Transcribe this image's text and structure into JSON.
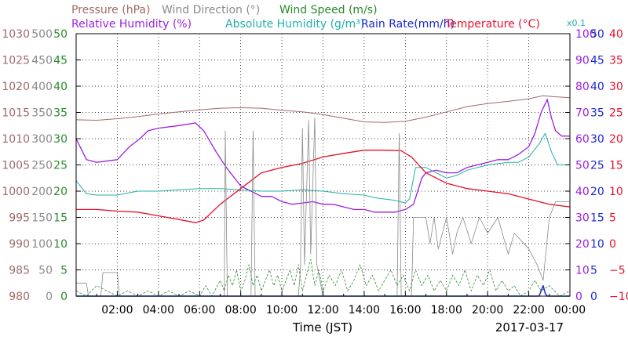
{
  "chart_data": {
    "type": "line",
    "legend_row1": [
      {
        "text": "Pressure (hPa)",
        "color": "#a06a6a"
      },
      {
        "text": "Wind Direction (°)",
        "color": "#8a8a8a"
      },
      {
        "text": "Wind Speed (m/s)",
        "color": "#2a8a2a"
      }
    ],
    "legend_row2": [
      {
        "text": "Relative Humidity (%)",
        "color": "#9b1fe0"
      },
      {
        "text": "Absolute Humidity (g/m³)",
        "color": "#22b0a8"
      },
      {
        "text": "Rain Rate(mm/h)",
        "color": "#1a2ad0"
      },
      {
        "text": "Temperature (°C)",
        "color": "#e8102a"
      }
    ],
    "abs_humidity_scale_note": "x0.1",
    "xlabel": "Time (JST)",
    "date": "2017-03-17",
    "x_ticks": [
      "02:00",
      "04:00",
      "06:00",
      "08:00",
      "10:00",
      "12:00",
      "14:00",
      "16:00",
      "18:00",
      "20:00",
      "22:00",
      "00:00"
    ],
    "xlim_hours": [
      0,
      24
    ],
    "axes": {
      "pressure": {
        "color": "#a06a6a",
        "ylim": [
          980,
          1030
        ],
        "ticks": [
          "980",
          "985",
          "990",
          "995",
          "1000",
          "1005",
          "1010",
          "1015",
          "1020",
          "1025",
          "1030"
        ]
      },
      "wind_direction": {
        "color": "#8a8a8a",
        "ylim": [
          0,
          500
        ],
        "ticks": [
          "0",
          "50",
          "100",
          "150",
          "200",
          "250",
          "300",
          "350",
          "400",
          "450",
          "500"
        ]
      },
      "wind_speed": {
        "color": "#2a8a2a",
        "ylim": [
          0,
          50
        ],
        "ticks": [
          "0",
          "5",
          "10",
          "15",
          "20",
          "25",
          "30",
          "35",
          "40",
          "45",
          "50"
        ]
      },
      "humidity": {
        "color": "#9b1fe0",
        "ylim": [
          0,
          100
        ],
        "ticks": [
          "0",
          "10",
          "20",
          "30",
          "40",
          "50",
          "60",
          "70",
          "80",
          "90",
          "100"
        ]
      },
      "rain_rate": {
        "color": "#1a2ad0",
        "ylim": [
          0,
          50
        ],
        "ticks": [
          "0",
          "5",
          "10",
          "15",
          "20",
          "25",
          "30",
          "35",
          "40",
          "45",
          "50"
        ]
      },
      "temperature": {
        "color": "#e8102a",
        "ylim": [
          -10,
          40
        ],
        "ticks": [
          "−10",
          "−5",
          "0",
          "5",
          "10",
          "15",
          "20",
          "25",
          "30",
          "35",
          "40"
        ]
      }
    },
    "grid": true,
    "series": [
      {
        "name": "Pressure (hPa)",
        "axis": "pressure",
        "color": "#a06a6a",
        "width": 1,
        "points": [
          [
            0,
            1013.6
          ],
          [
            1,
            1013.5
          ],
          [
            2,
            1013.8
          ],
          [
            3,
            1014.2
          ],
          [
            4,
            1014.7
          ],
          [
            5,
            1015.1
          ],
          [
            6,
            1015.5
          ],
          [
            7,
            1015.8
          ],
          [
            8,
            1015.9
          ],
          [
            9,
            1015.8
          ],
          [
            10,
            1015.4
          ],
          [
            11,
            1015.1
          ],
          [
            12,
            1014.6
          ],
          [
            13,
            1013.9
          ],
          [
            14,
            1013.2
          ],
          [
            15,
            1013.1
          ],
          [
            16,
            1013.3
          ],
          [
            17,
            1014.1
          ],
          [
            18,
            1015.1
          ],
          [
            19,
            1016.1
          ],
          [
            20,
            1016.7
          ],
          [
            21,
            1017.1
          ],
          [
            22,
            1017.6
          ],
          [
            22.7,
            1018.2
          ],
          [
            23.2,
            1018.0
          ],
          [
            24,
            1017.8
          ]
        ]
      },
      {
        "name": "Relative Humidity (%)",
        "axis": "humidity",
        "color": "#9b1fe0",
        "width": 1.3,
        "points": [
          [
            0,
            60
          ],
          [
            0.5,
            52
          ],
          [
            1,
            51
          ],
          [
            2,
            52
          ],
          [
            2.6,
            57
          ],
          [
            3.1,
            60
          ],
          [
            3.5,
            63
          ],
          [
            4,
            64
          ],
          [
            5,
            65
          ],
          [
            5.8,
            66
          ],
          [
            6.2,
            63
          ],
          [
            6.8,
            55
          ],
          [
            7.3,
            49
          ],
          [
            7.8,
            44
          ],
          [
            8,
            42
          ],
          [
            8.5,
            40
          ],
          [
            9,
            38
          ],
          [
            9.5,
            38
          ],
          [
            10,
            36
          ],
          [
            10.5,
            35
          ],
          [
            11,
            35.5
          ],
          [
            11.5,
            36
          ],
          [
            12,
            35
          ],
          [
            12.5,
            35
          ],
          [
            13,
            34
          ],
          [
            13.5,
            33
          ],
          [
            14,
            33
          ],
          [
            14.5,
            32
          ],
          [
            15,
            32
          ],
          [
            15.5,
            32
          ],
          [
            16,
            33
          ],
          [
            16.4,
            35
          ],
          [
            16.6,
            40
          ],
          [
            16.8,
            45
          ],
          [
            17,
            47
          ],
          [
            17.5,
            48
          ],
          [
            18,
            47
          ],
          [
            18.5,
            47
          ],
          [
            19,
            49
          ],
          [
            19.5,
            50
          ],
          [
            20,
            51
          ],
          [
            20.5,
            52
          ],
          [
            21,
            52
          ],
          [
            21.5,
            54
          ],
          [
            22,
            57
          ],
          [
            22.3,
            62
          ],
          [
            22.6,
            70
          ],
          [
            22.9,
            75
          ],
          [
            23.1,
            68
          ],
          [
            23.3,
            63
          ],
          [
            23.6,
            61
          ],
          [
            24,
            61
          ]
        ]
      },
      {
        "name": "Absolute Humidity (g/m³)",
        "axis": "humidity",
        "color": "#22b0a8",
        "width": 1,
        "points": [
          [
            0,
            44
          ],
          [
            0.5,
            39
          ],
          [
            1,
            38.5
          ],
          [
            2,
            38.5
          ],
          [
            3,
            40
          ],
          [
            4,
            40
          ],
          [
            5,
            40.5
          ],
          [
            6,
            41
          ],
          [
            7,
            41
          ],
          [
            8,
            40.5
          ],
          [
            9,
            40
          ],
          [
            10,
            40
          ],
          [
            11,
            40.5
          ],
          [
            12,
            40
          ],
          [
            13,
            39
          ],
          [
            14,
            38.5
          ],
          [
            14.5,
            37.5
          ],
          [
            15,
            37
          ],
          [
            15.5,
            36.5
          ],
          [
            16,
            35.5
          ],
          [
            16.2,
            37
          ],
          [
            16.5,
            49
          ],
          [
            17,
            49
          ],
          [
            17.5,
            47
          ],
          [
            18,
            45
          ],
          [
            18.5,
            46
          ],
          [
            19,
            48
          ],
          [
            20,
            50
          ],
          [
            21,
            51
          ],
          [
            21.5,
            51
          ],
          [
            22,
            53
          ],
          [
            22.5,
            58
          ],
          [
            22.8,
            62
          ],
          [
            23.1,
            55
          ],
          [
            23.4,
            50
          ],
          [
            24,
            50
          ]
        ]
      },
      {
        "name": "Temperature (°C)",
        "axis": "temperature",
        "color": "#e8102a",
        "width": 1.3,
        "points": [
          [
            0,
            6.5
          ],
          [
            1,
            6.5
          ],
          [
            2,
            6.2
          ],
          [
            3,
            6.0
          ],
          [
            4,
            5.3
          ],
          [
            5,
            4.6
          ],
          [
            5.8,
            4.0
          ],
          [
            6.2,
            4.5
          ],
          [
            7,
            7.5
          ],
          [
            8,
            10.5
          ],
          [
            9,
            13.5
          ],
          [
            10,
            14.5
          ],
          [
            11,
            15.3
          ],
          [
            12,
            16.5
          ],
          [
            13,
            17.2
          ],
          [
            14,
            17.8
          ],
          [
            15,
            17.8
          ],
          [
            15.8,
            17.7
          ],
          [
            16.3,
            16.5
          ],
          [
            17,
            13.5
          ],
          [
            18,
            11.5
          ],
          [
            19,
            10.5
          ],
          [
            20,
            10
          ],
          [
            21,
            9.5
          ],
          [
            22,
            8.5
          ],
          [
            23,
            7.5
          ],
          [
            24,
            7.0
          ]
        ]
      },
      {
        "name": "Wind Direction (°)",
        "axis": "wind_direction",
        "color": "#8a8a8a",
        "width": 0.8,
        "points": [
          [
            0,
            25
          ],
          [
            0.5,
            25
          ],
          [
            0.6,
            0
          ],
          [
            1.2,
            0
          ],
          [
            1.3,
            45
          ],
          [
            2,
            45
          ],
          [
            2.1,
            0
          ],
          [
            7,
            0
          ],
          [
            7.2,
            0
          ],
          [
            7.25,
            315
          ],
          [
            7.35,
            0
          ],
          [
            8.5,
            0
          ],
          [
            8.6,
            315
          ],
          [
            8.7,
            0
          ],
          [
            10.8,
            0
          ],
          [
            10.9,
            50
          ],
          [
            11,
            320
          ],
          [
            11.1,
            60
          ],
          [
            11.3,
            335
          ],
          [
            11.4,
            80
          ],
          [
            11.6,
            340
          ],
          [
            11.7,
            60
          ],
          [
            12,
            0
          ],
          [
            15.6,
            0
          ],
          [
            15.7,
            310
          ],
          [
            15.8,
            0
          ],
          [
            16.3,
            0
          ],
          [
            16.4,
            150
          ],
          [
            17,
            150
          ],
          [
            17.2,
            100
          ],
          [
            17.4,
            150
          ],
          [
            17.6,
            90
          ],
          [
            18,
            150
          ],
          [
            18.3,
            80
          ],
          [
            18.5,
            120
          ],
          [
            18.8,
            150
          ],
          [
            19.2,
            100
          ],
          [
            19.6,
            150
          ],
          [
            20,
            120
          ],
          [
            20.5,
            150
          ],
          [
            21,
            80
          ],
          [
            21.3,
            120
          ],
          [
            22,
            90
          ],
          [
            22.4,
            60
          ],
          [
            22.7,
            30
          ],
          [
            23,
            150
          ],
          [
            23.3,
            180
          ],
          [
            24,
            180
          ]
        ]
      },
      {
        "name": "Wind Speed (m/s)",
        "axis": "wind_speed",
        "color": "#2a8a2a",
        "width": 0.8,
        "dash": "3,2",
        "points": [
          [
            0,
            1
          ],
          [
            0.5,
            0
          ],
          [
            1,
            2
          ],
          [
            1.5,
            1
          ],
          [
            2,
            0
          ],
          [
            2.5,
            1
          ],
          [
            3,
            0
          ],
          [
            3.5,
            1
          ],
          [
            4,
            0
          ],
          [
            4.5,
            1
          ],
          [
            5,
            0
          ],
          [
            5.5,
            1
          ],
          [
            6,
            0
          ],
          [
            6.3,
            2
          ],
          [
            6.6,
            0
          ],
          [
            7,
            3
          ],
          [
            7.2,
            1
          ],
          [
            7.4,
            4
          ],
          [
            7.6,
            2
          ],
          [
            7.8,
            5
          ],
          [
            8,
            1
          ],
          [
            8.2,
            3
          ],
          [
            8.4,
            6
          ],
          [
            8.6,
            2
          ],
          [
            8.8,
            4
          ],
          [
            9,
            1
          ],
          [
            9.2,
            3
          ],
          [
            9.4,
            5
          ],
          [
            9.6,
            2
          ],
          [
            9.8,
            4
          ],
          [
            10,
            1
          ],
          [
            10.2,
            3
          ],
          [
            10.4,
            5
          ],
          [
            10.6,
            2
          ],
          [
            10.8,
            6
          ],
          [
            11,
            1
          ],
          [
            11.2,
            4
          ],
          [
            11.4,
            7
          ],
          [
            11.6,
            2
          ],
          [
            11.8,
            5
          ],
          [
            12,
            1
          ],
          [
            12.3,
            4
          ],
          [
            12.6,
            2
          ],
          [
            12.9,
            5
          ],
          [
            13.2,
            1
          ],
          [
            13.5,
            3
          ],
          [
            13.8,
            6
          ],
          [
            14.1,
            2
          ],
          [
            14.4,
            4
          ],
          [
            14.7,
            1
          ],
          [
            15,
            3
          ],
          [
            15.3,
            5
          ],
          [
            15.6,
            2
          ],
          [
            15.9,
            4
          ],
          [
            16.2,
            1
          ],
          [
            16.5,
            5
          ],
          [
            16.8,
            2
          ],
          [
            17.1,
            4
          ],
          [
            17.4,
            1
          ],
          [
            17.7,
            3
          ],
          [
            18,
            1
          ],
          [
            18.3,
            4
          ],
          [
            18.6,
            2
          ],
          [
            18.9,
            5
          ],
          [
            19.2,
            1
          ],
          [
            19.5,
            4
          ],
          [
            19.8,
            2
          ],
          [
            20.1,
            5
          ],
          [
            20.4,
            1
          ],
          [
            20.7,
            3
          ],
          [
            21,
            1
          ],
          [
            21.3,
            2
          ],
          [
            21.6,
            0
          ],
          [
            22,
            1
          ],
          [
            22.3,
            3
          ],
          [
            22.6,
            1
          ],
          [
            23,
            2
          ],
          [
            23.5,
            0
          ],
          [
            24,
            1
          ]
        ]
      },
      {
        "name": "Rain Rate(mm/h)",
        "axis": "rain_rate",
        "color": "#1a2ad0",
        "width": 1.5,
        "points": [
          [
            0,
            0
          ],
          [
            22.5,
            0
          ],
          [
            22.6,
            1
          ],
          [
            22.7,
            2
          ],
          [
            22.8,
            0.5
          ],
          [
            22.9,
            0
          ],
          [
            24,
            0
          ]
        ]
      }
    ]
  }
}
